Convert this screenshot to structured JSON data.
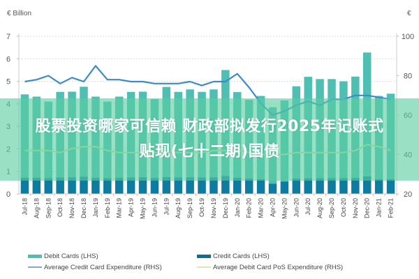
{
  "chart_data": {
    "type": "bar",
    "title": "",
    "left_unit": "€ Billion",
    "right_unit": "€",
    "xlabel": "",
    "ylabel_left": "€ Billion",
    "ylabel_right": "€",
    "ylim_left": [
      0,
      7
    ],
    "ylim_right": [
      20,
      100
    ],
    "left_ticks": [
      0,
      1,
      2,
      3,
      4,
      5,
      6,
      7
    ],
    "right_ticks": [
      20,
      40,
      60,
      80,
      100
    ],
    "grid": true,
    "legend_position": "bottom",
    "categories": [
      "Jul-18",
      "Aug-18",
      "Sep-18",
      "Oct-18",
      "Nov-18",
      "Dec-18",
      "Jan-19",
      "Feb-19",
      "Mar-19",
      "Apr-19",
      "May-19",
      "Jun-19",
      "Jul-19",
      "Aug-19",
      "Sep-19",
      "Oct-19",
      "Nov-19",
      "Dec-19",
      "Jan-20",
      "Feb-20",
      "Mar-20",
      "Apr-20",
      "May-20",
      "Jun-20",
      "Jul-20",
      "Aug-20",
      "Sep-20",
      "Oct-20",
      "Nov-20",
      "Dec-20",
      "Jan-21",
      "Feb-21"
    ],
    "series": [
      {
        "name": "Debit Cards (LHS)",
        "type": "bar",
        "axis": "left",
        "stacked_on": "Credit Cards (LHS)",
        "values": [
          3.7,
          3.6,
          3.4,
          3.8,
          3.8,
          4.0,
          3.6,
          3.4,
          3.6,
          3.8,
          3.8,
          3.5,
          4.0,
          3.8,
          3.9,
          3.8,
          3.9,
          4.7,
          3.8,
          3.5,
          3.7,
          3.4,
          3.6,
          4.1,
          4.5,
          4.4,
          4.4,
          4.3,
          4.5,
          5.5,
          3.7,
          3.8
        ]
      },
      {
        "name": "Credit Cards (LHS)",
        "type": "bar",
        "axis": "left",
        "values": [
          0.72,
          0.72,
          0.7,
          0.73,
          0.74,
          0.76,
          0.72,
          0.7,
          0.72,
          0.73,
          0.74,
          0.71,
          0.75,
          0.73,
          0.74,
          0.73,
          0.74,
          0.8,
          0.72,
          0.68,
          0.65,
          0.45,
          0.55,
          0.68,
          0.7,
          0.7,
          0.7,
          0.7,
          0.71,
          0.78,
          0.65,
          0.65
        ]
      },
      {
        "name": "Average Credit Card Expenditure (RHS)",
        "type": "line",
        "axis": "right",
        "values": [
          77,
          78,
          80,
          76,
          79,
          77,
          85,
          78,
          78,
          77,
          77,
          76,
          76,
          76,
          77,
          75,
          77,
          77,
          81,
          74,
          66,
          60,
          62,
          65,
          67,
          65,
          68,
          68,
          70,
          70,
          69,
          68
        ]
      },
      {
        "name": "Average Debit Card PoS Expenditure (RHS)",
        "type": "line",
        "axis": "right",
        "values": [
          42,
          42,
          42,
          41,
          43,
          44,
          44,
          42,
          41,
          41,
          41,
          41,
          41,
          41,
          41,
          41,
          42,
          42,
          42,
          41,
          40,
          40,
          40,
          41,
          41,
          41,
          41,
          41,
          42,
          45,
          44,
          42
        ]
      }
    ]
  },
  "axis": {
    "left_unit_label": "€ Billion",
    "right_unit_label": "€",
    "left_ticks": [
      "0",
      "1",
      "2",
      "3",
      "4",
      "5",
      "6",
      "7"
    ],
    "right_ticks": [
      "20",
      "40",
      "60",
      "80",
      "100"
    ]
  },
  "legend": {
    "debit_cards": "Debit Cards (LHS)",
    "credit_cards": "Credit Cards (LHS)",
    "avg_credit": "Average Credit Card Expenditure (RHS)",
    "avg_debit_pos": "Average Debit Card PoS Expenditure (RHS)"
  },
  "colors": {
    "debit": "#4fbfb3",
    "credit": "#0e7ba0",
    "avg_credit_line": "#3a8cc9",
    "avg_debit_line": "#cfe3a0",
    "grid": "#dddddd",
    "banner": "#5acda0"
  },
  "banner": {
    "line1": "股票投资哪家可信赖 财政部拟发行2025年记账式",
    "line2": "贴现(七十二期)国债"
  }
}
